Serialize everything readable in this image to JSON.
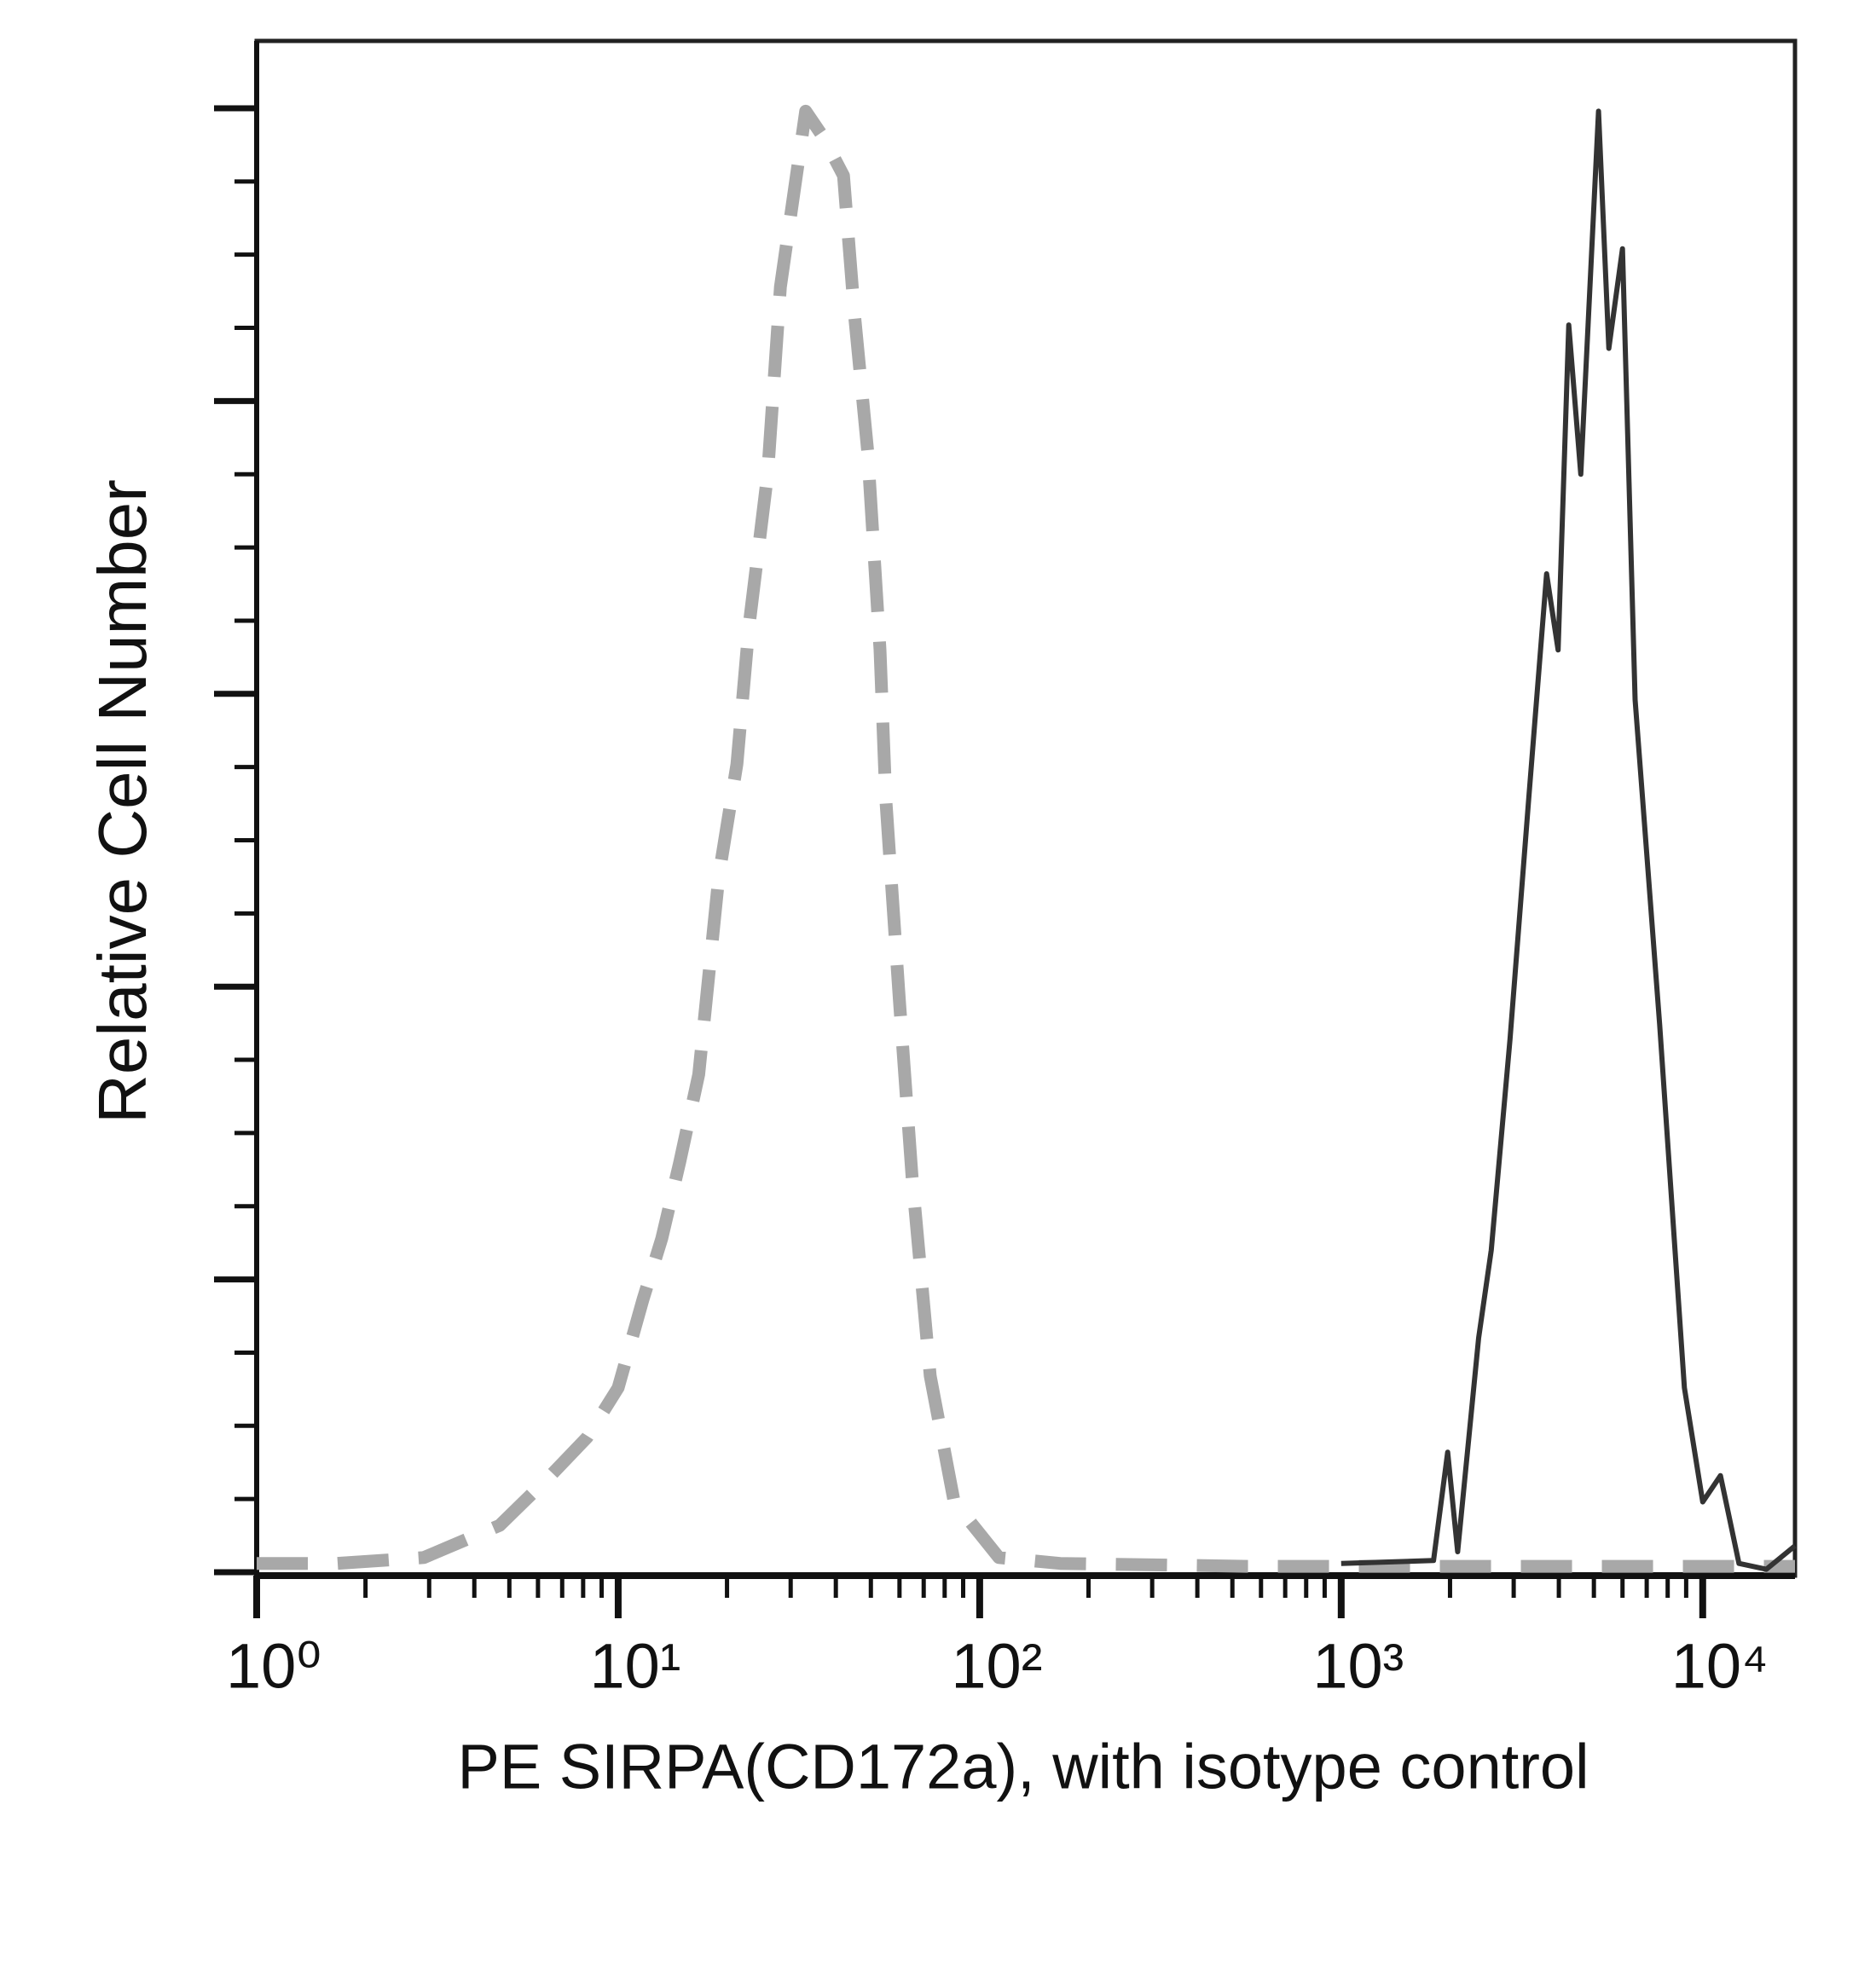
{
  "chart_data": {
    "type": "line",
    "xlabel": "PE SIRPA(CD172a), with isotype control",
    "ylabel": "Relative Cell Number",
    "xscale": "log",
    "xlim": [
      1,
      18000
    ],
    "xticks": [
      {
        "value": 1,
        "label": "10⁰"
      },
      {
        "value": 10,
        "label": "10¹"
      },
      {
        "value": 100,
        "label": "10²"
      },
      {
        "value": 1000,
        "label": "10³"
      },
      {
        "value": 10000,
        "label": "10⁴"
      }
    ],
    "xminorticks": [
      2,
      3,
      4,
      5,
      6,
      7,
      8,
      9,
      20,
      30,
      40,
      50,
      60,
      70,
      80,
      90,
      200,
      300,
      400,
      500,
      600,
      700,
      800,
      900,
      2000,
      3000,
      4000,
      5000,
      6000,
      7000,
      8000,
      9000
    ],
    "ylim": [
      0,
      5.23
    ],
    "yticks": [
      0,
      1,
      2,
      3,
      4,
      5
    ],
    "yminorticks": [
      0.25,
      0.5,
      0.75,
      1.25,
      1.5,
      1.75,
      2.25,
      2.5,
      2.75,
      3.25,
      3.5,
      3.75,
      4.25,
      4.5,
      4.75
    ],
    "series": [
      {
        "color": "#a8a8a8",
        "dashed": true,
        "x": [
          1,
          1.67,
          2.9,
          4.7,
          6.5,
          8.2,
          10,
          11.7,
          13.2,
          14.8,
          16.7,
          19,
          21.3,
          23,
          25.9,
          28.1,
          33,
          37,
          42,
          45,
          49,
          53,
          55,
          60,
          65,
          73,
          85,
          113,
          167,
          550,
          1800,
          6000,
          18000
        ],
        "values": [
          0.03,
          0.03,
          0.05,
          0.16,
          0.33,
          0.46,
          0.63,
          0.93,
          1.14,
          1.4,
          1.7,
          2.38,
          2.76,
          3.23,
          3.75,
          4.39,
          4.99,
          4.9,
          4.77,
          4.3,
          3.83,
          3.15,
          2.64,
          1.95,
          1.35,
          0.67,
          0.24,
          0.05,
          0.03,
          0.02,
          0.02,
          0.02,
          0.02
        ]
      },
      {
        "color": "#333333",
        "dashed": false,
        "x": [
          1000,
          1800,
          1970,
          2100,
          2400,
          2600,
          2930,
          3300,
          3700,
          3980,
          4260,
          4600,
          5150,
          5500,
          6000,
          6500,
          7600,
          8900,
          10000,
          11200,
          12600,
          15000,
          18000
        ],
        "values": [
          0.03,
          0.04,
          0.41,
          0.07,
          0.8,
          1.1,
          1.82,
          2.64,
          3.41,
          3.15,
          4.26,
          3.75,
          4.99,
          4.18,
          4.52,
          2.98,
          1.87,
          0.63,
          0.24,
          0.33,
          0.03,
          0.01,
          0.09
        ]
      }
    ]
  }
}
